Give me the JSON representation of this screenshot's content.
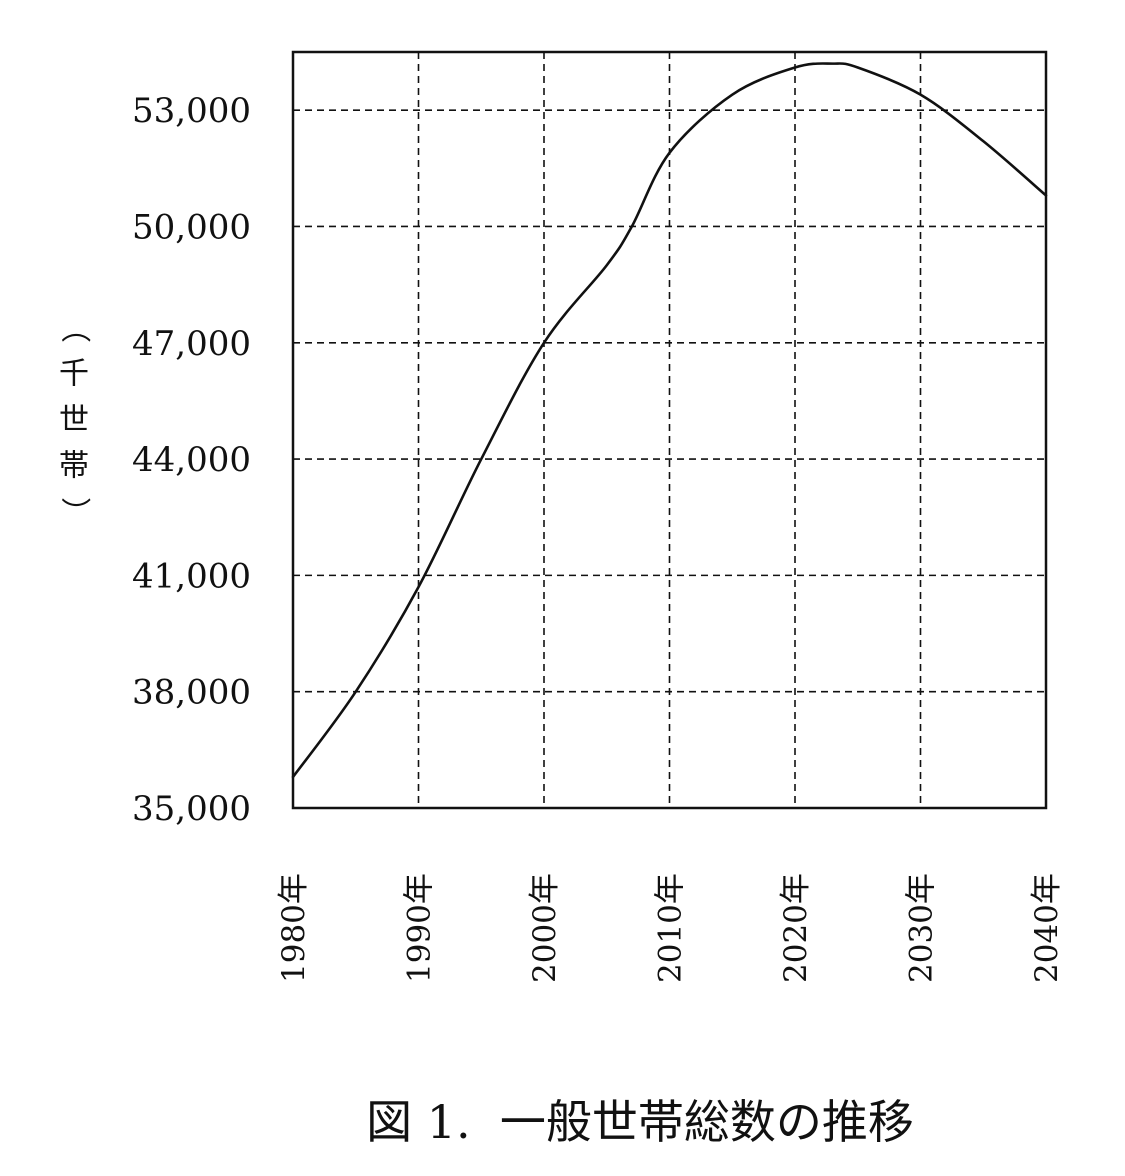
{
  "chart_data": {
    "type": "line",
    "title": "図 1.  一般世帯総数の推移",
    "xlabel": "",
    "ylabel": "（千世帯）",
    "x_categories": [
      "1980年",
      "1990年",
      "2000年",
      "2010年",
      "2020年",
      "2030年",
      "2040年"
    ],
    "xlim": [
      1980,
      2040
    ],
    "ylim": [
      35000,
      54500
    ],
    "yticks": [
      35000,
      38000,
      41000,
      44000,
      47000,
      50000,
      53000
    ],
    "ytick_labels": [
      "35,000",
      "38,000",
      "41,000",
      "44,000",
      "47,000",
      "50,000",
      "53,000"
    ],
    "grid": true,
    "grid_style": "dashed",
    "series": [
      {
        "color": "#111111",
        "x": [
          1980,
          1985,
          1990,
          1995,
          2000,
          2005,
          2007,
          2010,
          2015,
          2020,
          2023,
          2025,
          2030,
          2035,
          2040
        ],
        "y": [
          35800,
          38000,
          40700,
          44000,
          47000,
          49000,
          50000,
          51900,
          53400,
          54100,
          54200,
          54100,
          53400,
          52200,
          50800
        ]
      }
    ]
  }
}
